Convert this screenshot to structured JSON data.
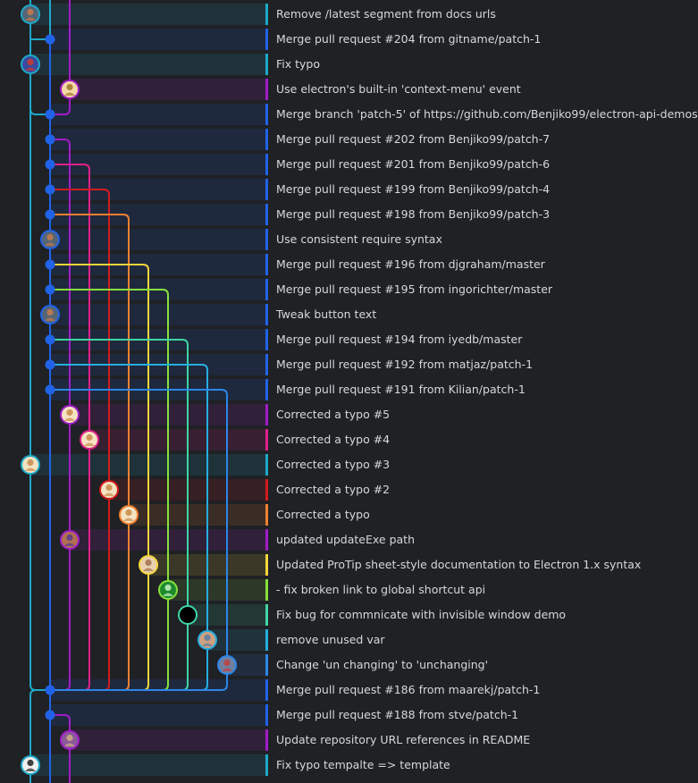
{
  "branch_colors": {
    "cyan": "#1fa9c9",
    "blue": "#2163e8",
    "purple": "#a21cc7",
    "pink": "#e1208a",
    "red": "#d11c1c",
    "orange": "#f08030",
    "yellow": "#f5d53b",
    "lime": "#86e03d",
    "teal": "#3fd5a3",
    "sky": "#24aee0",
    "azure": "#2c86e8"
  },
  "commits": [
    {
      "message": "Remove /latest segment from docs urls",
      "lane": 0,
      "color": "cyan",
      "type": "avatar",
      "avatar_bg": "#556677",
      "avatar_fg": "#c97b4a"
    },
    {
      "message": "Merge pull request #204 from gitname/patch-1",
      "lane": 1,
      "color": "blue",
      "type": "merge"
    },
    {
      "message": "Fix typo",
      "lane": 0,
      "color": "cyan",
      "type": "avatar",
      "avatar_bg": "#3a4aa0",
      "avatar_fg": "#d23a2a"
    },
    {
      "message": "Use electron's built-in 'context-menu' event",
      "lane": 2,
      "color": "purple",
      "type": "avatar",
      "avatar_bg": "#f4d9a6",
      "avatar_fg": "#a0742a"
    },
    {
      "message": "Merge branch 'patch-5' of https://github.com/Benjiko99/electron-api-demos",
      "lane": 1,
      "color": "blue",
      "type": "merge"
    },
    {
      "message": "Merge pull request #202 from Benjiko99/patch-7",
      "lane": 1,
      "color": "blue",
      "type": "merge"
    },
    {
      "message": "Merge pull request #201 from Benjiko99/patch-6",
      "lane": 1,
      "color": "blue",
      "type": "merge"
    },
    {
      "message": "Merge pull request #199 from Benjiko99/patch-4",
      "lane": 1,
      "color": "blue",
      "type": "merge"
    },
    {
      "message": "Merge pull request #198 from Benjiko99/patch-3",
      "lane": 1,
      "color": "blue",
      "type": "merge"
    },
    {
      "message": "Use consistent require syntax",
      "lane": 1,
      "color": "blue",
      "type": "avatar",
      "avatar_bg": "#556677",
      "avatar_fg": "#c97b4a"
    },
    {
      "message": "Merge pull request #196 from djgraham/master",
      "lane": 1,
      "color": "blue",
      "type": "merge"
    },
    {
      "message": "Merge pull request #195 from ingorichter/master",
      "lane": 1,
      "color": "blue",
      "type": "merge"
    },
    {
      "message": "Tweak button text",
      "lane": 1,
      "color": "blue",
      "type": "avatar",
      "avatar_bg": "#556677",
      "avatar_fg": "#c97b4a"
    },
    {
      "message": "Merge pull request #194 from iyedb/master",
      "lane": 1,
      "color": "blue",
      "type": "merge"
    },
    {
      "message": "Merge pull request #192 from matjaz/patch-1",
      "lane": 1,
      "color": "blue",
      "type": "merge"
    },
    {
      "message": "Merge pull request #191 from Kilian/patch-1",
      "lane": 1,
      "color": "blue",
      "type": "merge"
    },
    {
      "message": "Corrected a typo #5",
      "lane": 2,
      "color": "purple",
      "type": "avatar",
      "avatar_bg": "#f4e3c2",
      "avatar_fg": "#c98a4a"
    },
    {
      "message": "Corrected a typo #4",
      "lane": 3,
      "color": "pink",
      "type": "avatar",
      "avatar_bg": "#f4e3c2",
      "avatar_fg": "#c98a4a"
    },
    {
      "message": "Corrected a typo #3",
      "lane": 0,
      "color": "cyan",
      "type": "avatar",
      "avatar_bg": "#f4e3c2",
      "avatar_fg": "#c98a4a"
    },
    {
      "message": "Corrected a typo #2",
      "lane": 4,
      "color": "red",
      "type": "avatar",
      "avatar_bg": "#f4e3c2",
      "avatar_fg": "#c98a4a"
    },
    {
      "message": "Corrected a typo",
      "lane": 5,
      "color": "orange",
      "type": "avatar",
      "avatar_bg": "#f4e3c2",
      "avatar_fg": "#c98a4a"
    },
    {
      "message": "updated updateExe path",
      "lane": 2,
      "color": "purple",
      "type": "avatar",
      "avatar_bg": "#b07050",
      "avatar_fg": "#5a3a8a"
    },
    {
      "message": "Updated ProTip sheet-style documentation to Electron 1.x syntax",
      "lane": 6,
      "color": "yellow",
      "type": "avatar",
      "avatar_bg": "#e8d0b0",
      "avatar_fg": "#a07050"
    },
    {
      "message": "- fix broken link to global shortcut api",
      "lane": 7,
      "color": "lime",
      "type": "avatar",
      "avatar_bg": "#1c8a2c",
      "avatar_fg": "#c8f0c8"
    },
    {
      "message": "Fix bug for commnicate with invisible window demo",
      "lane": 8,
      "color": "teal",
      "type": "avatar",
      "avatar_bg": "#000000",
      "avatar_fg": "#000000"
    },
    {
      "message": "remove unused var",
      "lane": 9,
      "color": "sky",
      "type": "avatar",
      "avatar_bg": "#d0a080",
      "avatar_fg": "#5a7aa0"
    },
    {
      "message": "Change 'un changing' to 'unchanging'",
      "lane": 10,
      "color": "azure",
      "type": "avatar",
      "avatar_bg": "#7080a0",
      "avatar_fg": "#c04040"
    },
    {
      "message": "Merge pull request #186 from maarekj/patch-1",
      "lane": 1,
      "color": "blue",
      "type": "merge"
    },
    {
      "message": "Merge pull request #188 from stve/patch-1",
      "lane": 1,
      "color": "blue",
      "type": "merge"
    },
    {
      "message": "Update repository URL references in README",
      "lane": 2,
      "color": "purple",
      "type": "avatar",
      "avatar_bg": "#8a5a9a",
      "avatar_fg": "#d0b080"
    },
    {
      "message": "Fix typo tempalte => template",
      "lane": 0,
      "color": "cyan",
      "type": "avatar",
      "avatar_bg": "#f0f0f0",
      "avatar_fg": "#202020"
    }
  ]
}
